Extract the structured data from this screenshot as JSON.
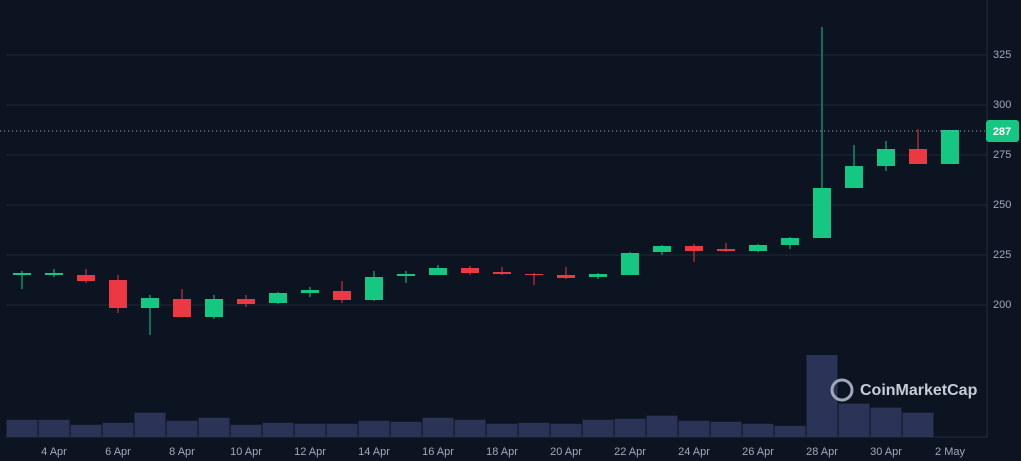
{
  "chart_data": {
    "type": "candlestick",
    "categories": [
      null,
      "4 Apr",
      null,
      "6 Apr",
      null,
      "8 Apr",
      null,
      "10 Apr",
      null,
      "12 Apr",
      null,
      "14 Apr",
      null,
      "16 Apr",
      null,
      "18 Apr",
      null,
      "20 Apr",
      null,
      "22 Apr",
      null,
      "24 Apr",
      null,
      "26 Apr",
      null,
      "28 Apr",
      null,
      "30 Apr",
      null,
      "2 May"
    ],
    "open": [
      215,
      215,
      215,
      212.5,
      198.5,
      203,
      194,
      203,
      201,
      206,
      207,
      202.5,
      214.5,
      215,
      218.5,
      216.5,
      215.5,
      215,
      214,
      215,
      226.5,
      229.5,
      228,
      227,
      230,
      233.5,
      258.5,
      269.5,
      278,
      270.5
    ],
    "high": [
      217,
      218,
      218,
      215,
      205,
      208,
      205,
      205,
      206.5,
      209,
      212,
      217,
      217,
      220,
      219.5,
      219,
      216,
      219,
      216,
      226.5,
      230,
      230.5,
      231,
      230.5,
      234,
      339,
      280,
      282,
      288,
      287.5
    ],
    "low": [
      208,
      214,
      211,
      196,
      185,
      194,
      193,
      199,
      200.5,
      204,
      201,
      202,
      211,
      215,
      215,
      215,
      210,
      213,
      213,
      215,
      225,
      221.5,
      226.5,
      226.5,
      228,
      233.5,
      258.5,
      267,
      270.5,
      270.5
    ],
    "close": [
      216,
      216,
      212,
      198.5,
      203.5,
      194,
      203,
      200.5,
      206,
      207.5,
      202.5,
      214,
      215.5,
      218.5,
      216,
      215.5,
      215,
      213.5,
      215.5,
      226,
      229.5,
      227,
      227,
      230,
      233.5,
      258.5,
      269.5,
      278,
      270.5,
      287.5
    ],
    "volume": [
      17,
      17,
      12,
      14,
      24,
      16,
      19,
      12,
      14,
      13,
      13,
      16,
      15,
      19,
      17,
      13,
      14,
      13,
      17,
      18,
      21,
      16,
      15,
      13,
      11,
      81,
      33,
      29,
      24,
      null
    ],
    "up_color": "#16c784",
    "down_color": "#ea3943",
    "volume_color": "#2b3456",
    "ylim": [
      134,
      352.5
    ],
    "yticks": [
      200,
      225,
      250,
      275,
      300,
      325
    ],
    "grid": true,
    "last_price": 287,
    "watermark": "CoinMarketCap"
  }
}
